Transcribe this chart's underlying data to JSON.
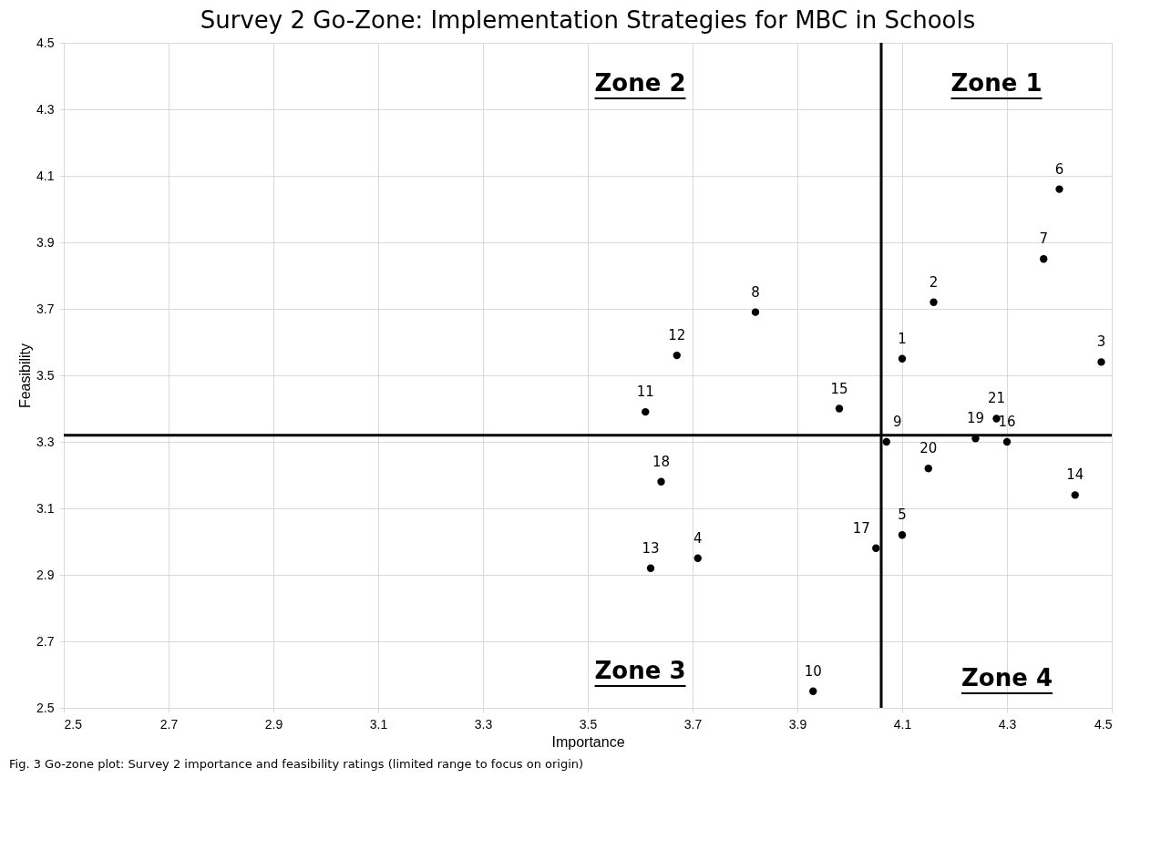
{
  "chart_data": {
    "type": "scatter",
    "title": "Survey 2 Go-Zone: Implementation Strategies for MBC in Schools",
    "xlabel": "Importance",
    "ylabel": "Feasibility",
    "x": [
      4.1,
      4.16,
      4.48,
      3.71,
      4.1,
      4.4,
      4.37,
      3.82,
      4.07,
      3.93,
      3.61,
      3.67,
      3.62,
      4.43,
      3.98,
      4.3,
      4.05,
      3.64,
      4.24,
      4.15,
      4.28
    ],
    "series": [
      {
        "color": "#000000",
        "values": [
          3.55,
          3.72,
          3.54,
          2.95,
          3.02,
          4.06,
          3.85,
          3.69,
          3.3,
          2.55,
          3.39,
          3.56,
          2.92,
          3.14,
          3.4,
          3.3,
          2.98,
          3.18,
          3.31,
          3.22,
          3.37
        ]
      }
    ],
    "xlim": [
      2.5,
      4.5
    ],
    "xticks": [
      2.5,
      2.7,
      2.9,
      3.1,
      3.3,
      3.5,
      3.7,
      3.9,
      4.1,
      4.3,
      4.5
    ],
    "ylim": [
      2.5,
      4.5
    ],
    "yticks": [
      2.5,
      2.7,
      2.9,
      3.1,
      3.3,
      3.5,
      3.7,
      3.9,
      4.1,
      4.3,
      4.5
    ],
    "grid": true,
    "marker": "circle",
    "ref_lines": [
      {
        "axis": "x",
        "value": 4.06,
        "color": "#000000"
      },
      {
        "axis": "y",
        "value": 3.32,
        "color": "#000000"
      }
    ],
    "annotations": [
      "Zone 1",
      "Zone 2",
      "Zone 3",
      "Zone 4",
      {
        "text": "1",
        "x": 4.1,
        "y": 3.55
      },
      {
        "text": "2",
        "x": 4.16,
        "y": 3.72
      },
      {
        "text": "3",
        "x": 4.48,
        "y": 3.54
      },
      {
        "text": "4",
        "x": 3.71,
        "y": 2.95
      },
      {
        "text": "5",
        "x": 4.1,
        "y": 3.02
      },
      {
        "text": "6",
        "x": 4.4,
        "y": 4.06
      },
      {
        "text": "7",
        "x": 4.37,
        "y": 3.85
      },
      {
        "text": "8",
        "x": 3.82,
        "y": 3.69
      },
      {
        "text": "9",
        "x": 4.07,
        "y": 3.3
      },
      {
        "text": "10",
        "x": 3.93,
        "y": 2.55
      },
      {
        "text": "11",
        "x": 3.61,
        "y": 3.39
      },
      {
        "text": "12",
        "x": 3.67,
        "y": 3.56
      },
      {
        "text": "13",
        "x": 3.62,
        "y": 2.92
      },
      {
        "text": "14",
        "x": 4.43,
        "y": 3.14
      },
      {
        "text": "15",
        "x": 3.98,
        "y": 3.4
      },
      {
        "text": "16",
        "x": 4.3,
        "y": 3.3
      },
      {
        "text": "17",
        "x": 4.05,
        "y": 2.98
      },
      {
        "text": "18",
        "x": 3.64,
        "y": 3.18
      },
      {
        "text": "19",
        "x": 4.24,
        "y": 3.31
      },
      {
        "text": "20",
        "x": 4.15,
        "y": 3.22
      },
      {
        "text": "21",
        "x": 4.28,
        "y": 3.37
      },
      "Fig. 3 Go-zone plot: Survey 2 importance and feasibility ratings (limited range to focus on origin)"
    ]
  }
}
